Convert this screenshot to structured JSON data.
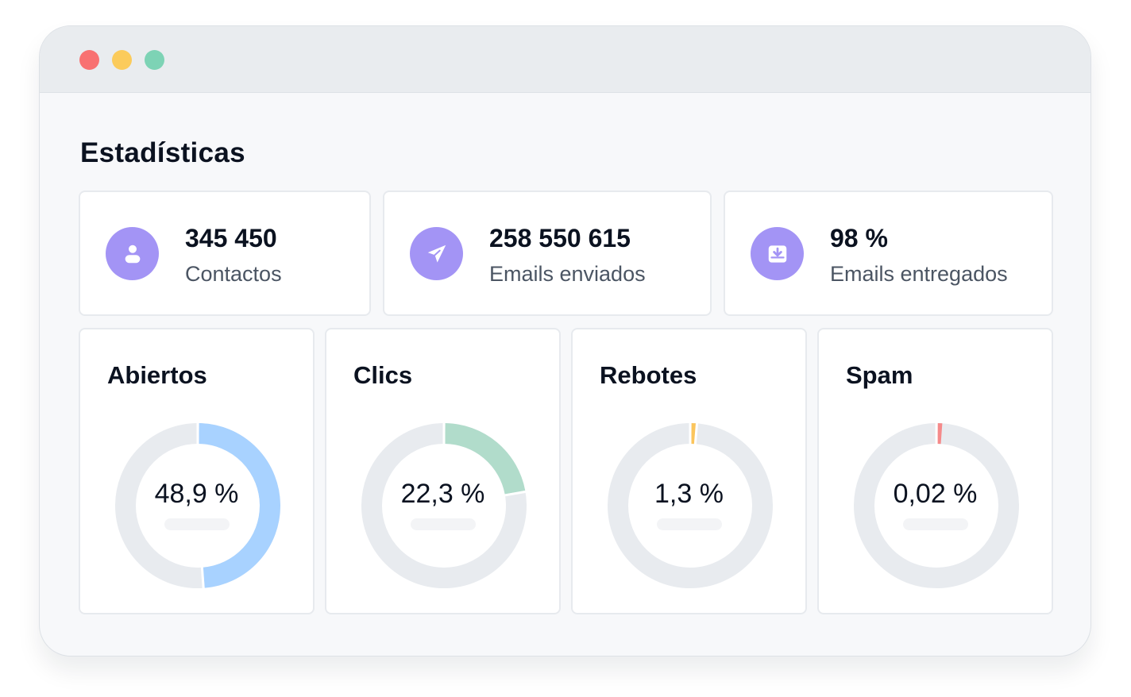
{
  "window": {
    "traffic_lights": [
      "#f87171",
      "#fbcb5b",
      "#7dd3b5"
    ]
  },
  "page": {
    "title": "Estadísticas"
  },
  "stats": [
    {
      "icon": "user-icon",
      "value": "345 450",
      "label": "Contactos",
      "icon_bg": "#a394f5"
    },
    {
      "icon": "send-icon",
      "value": "258 550 615",
      "label": "Emails enviados",
      "icon_bg": "#a394f5"
    },
    {
      "icon": "inbox-download-icon",
      "value": "98 %",
      "label": "Emails entregados",
      "icon_bg": "#a394f5"
    }
  ],
  "charts": [
    {
      "title": "Abiertos",
      "value_label": "48,9 %",
      "fraction": 0.489,
      "color": "#a8d2ff"
    },
    {
      "title": "Clics",
      "value_label": "22,3 %",
      "fraction": 0.223,
      "color": "#b1dccb"
    },
    {
      "title": "Rebotes",
      "value_label": "1,3 %",
      "fraction": 0.013,
      "color": "#fbc55c"
    },
    {
      "title": "Spam",
      "value_label": "0,02 %",
      "fraction": 0.0002,
      "color": "#f58a8a"
    }
  ],
  "track_color": "#e8ebef"
}
